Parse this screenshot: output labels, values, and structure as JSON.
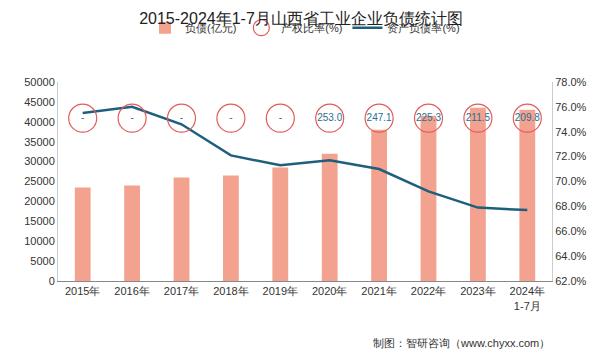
{
  "chart_data": {
    "type": "bar",
    "title": "2015-2024年1-7月山西省工业企业负债统计图",
    "categories": [
      "2015年",
      "2016年",
      "2017年",
      "2018年",
      "2019年",
      "2020年",
      "2021年",
      "2022年",
      "2023年",
      "2024年\n1-7月"
    ],
    "series": [
      {
        "name": "负债(亿元)",
        "type": "bar",
        "color": "#f2a28e",
        "values": [
          23500,
          24000,
          26000,
          26500,
          28500,
          32000,
          38000,
          41500,
          43500,
          43000
        ]
      },
      {
        "name": "产权比率(%)",
        "type": "label_row",
        "color": "#e05a5a",
        "marker": "circle-open",
        "data_labels": true,
        "values": [
          null,
          null,
          null,
          null,
          null,
          253.0,
          247.1,
          225.3,
          211.5,
          209.8
        ],
        "value_labels": [
          "-",
          "-",
          "-",
          "-",
          "-",
          "253.0",
          "247.1",
          "225.3",
          "211.5",
          "209.8"
        ]
      },
      {
        "name": "资产负债率(%)",
        "type": "line",
        "axis": "y2",
        "color": "#1d5f7c",
        "values": [
          75.5,
          76.0,
          74.6,
          72.1,
          71.3,
          71.7,
          71.0,
          69.2,
          67.9,
          67.7
        ]
      }
    ],
    "ylim": [
      0,
      50000
    ],
    "yticks": [
      0,
      5000,
      10000,
      15000,
      20000,
      25000,
      30000,
      35000,
      40000,
      45000,
      50000
    ],
    "y2lim": [
      62,
      78
    ],
    "y2ticks": [
      {
        "value": 62,
        "label": "62.0%"
      },
      {
        "value": 64,
        "label": "64.0%"
      },
      {
        "value": 66,
        "label": "66.0%"
      },
      {
        "value": 68,
        "label": "68.0%"
      },
      {
        "value": 70,
        "label": "70.0%"
      },
      {
        "value": 72,
        "label": "72.0%"
      },
      {
        "value": 74,
        "label": "74.0%"
      },
      {
        "value": 76,
        "label": "76.0%"
      },
      {
        "value": 78,
        "label": "78.0%"
      }
    ],
    "grid": false,
    "legend": "top",
    "annotations": [
      {
        "text": "制图：智研咨询（www.chyxx.com）"
      }
    ]
  }
}
